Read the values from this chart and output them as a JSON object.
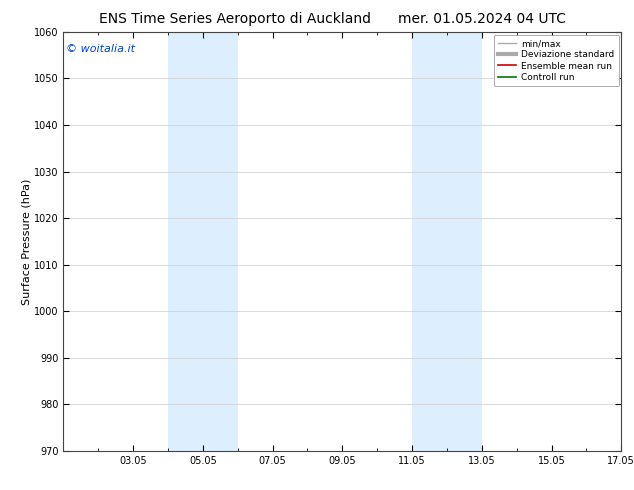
{
  "title_left": "ENS Time Series Aeroporto di Auckland",
  "title_right": "mer. 01.05.2024 04 UTC",
  "ylabel": "Surface Pressure (hPa)",
  "ylim": [
    970,
    1060
  ],
  "yticks": [
    970,
    980,
    990,
    1000,
    1010,
    1020,
    1030,
    1040,
    1050,
    1060
  ],
  "xtick_labels": [
    "03.05",
    "05.05",
    "07.05",
    "09.05",
    "11.05",
    "13.05",
    "15.05",
    "17.05"
  ],
  "xtick_positions": [
    2,
    4,
    6,
    8,
    10,
    12,
    14,
    16
  ],
  "xlim": [
    0,
    16
  ],
  "watermark": "© woitalia.it",
  "shaded_bands": [
    {
      "x_start": 3,
      "x_end": 5
    },
    {
      "x_start": 10,
      "x_end": 12
    }
  ],
  "shade_color": "#ddeeff",
  "grid_color": "#cccccc",
  "bg_color": "#ffffff",
  "legend_items": [
    {
      "label": "min/max",
      "color": "#aaaaaa",
      "linewidth": 1.0,
      "type": "line"
    },
    {
      "label": "Deviazione standard",
      "color": "#aaaaaa",
      "linewidth": 3.0,
      "type": "line"
    },
    {
      "label": "Ensemble mean run",
      "color": "#cc0000",
      "linewidth": 1.2,
      "type": "line"
    },
    {
      "label": "Controll run",
      "color": "#007700",
      "linewidth": 1.2,
      "type": "line"
    }
  ],
  "title_fontsize": 10,
  "tick_fontsize": 7,
  "ylabel_fontsize": 8,
  "watermark_fontsize": 8
}
